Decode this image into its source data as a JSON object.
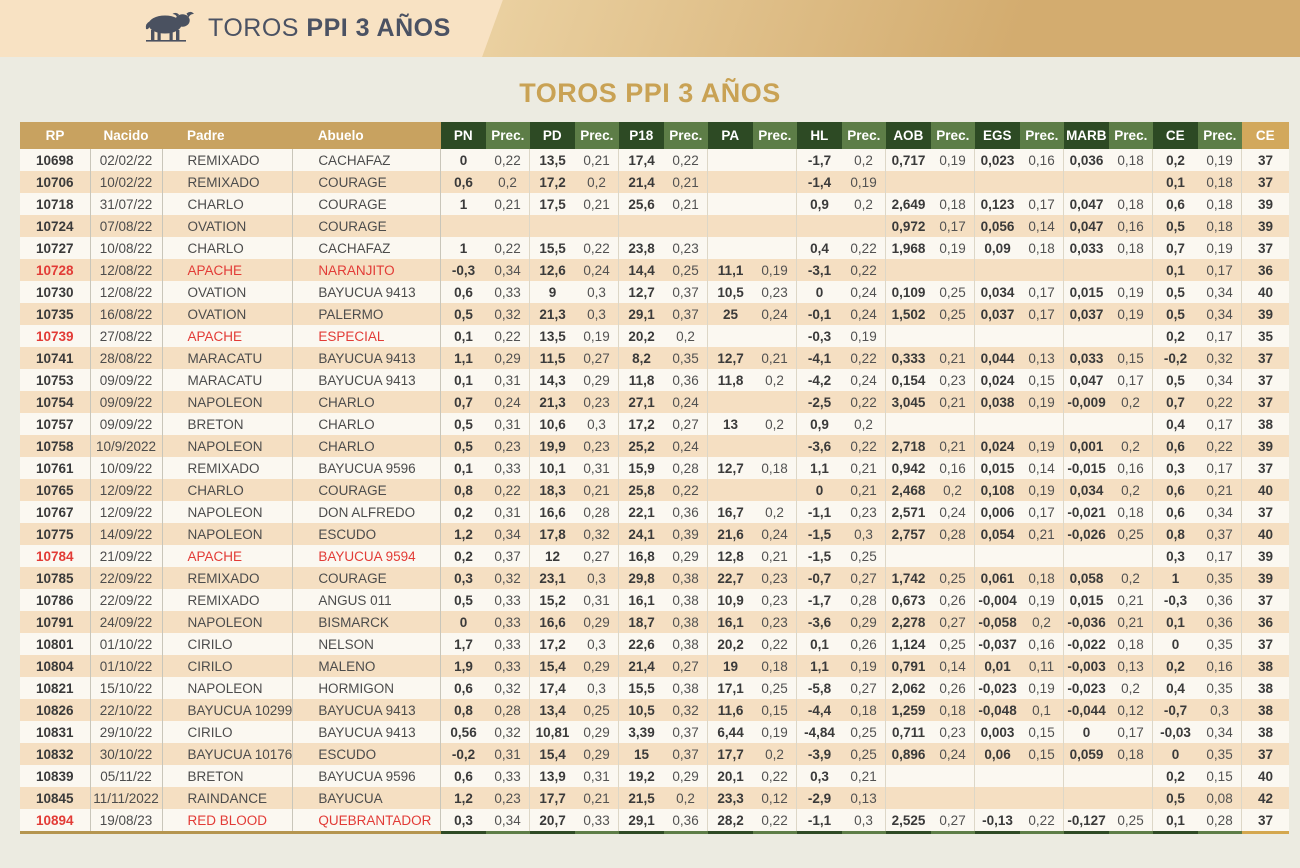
{
  "banner": {
    "brand_regular": "TOROS ",
    "brand_bold": "PPI 3 AÑOS"
  },
  "page_title": "TOROS PPI 3 AÑOS",
  "colors": {
    "banner_peach": "#f8e2c3",
    "banner_gold": "#d3ac6f",
    "page_background": "#ecebe1",
    "title_gold": "#c9a254",
    "header_tan": "#c8a260",
    "header_dark_green": "#2d4a24",
    "header_light_green": "#5d7d47",
    "header_final_tan": "#d2a85c",
    "row_cream": "#fbf8f1",
    "row_peach": "#f5dfc2",
    "highlight_red": "#e23b36"
  },
  "table": {
    "columns": [
      {
        "key": "rp",
        "label": "RP",
        "type": "id"
      },
      {
        "key": "nacido",
        "label": "Nacido",
        "type": "id"
      },
      {
        "key": "padre",
        "label": "Padre",
        "type": "id"
      },
      {
        "key": "abuelo",
        "label": "Abuelo",
        "type": "id"
      },
      {
        "key": "pn",
        "label": "PN",
        "type": "val"
      },
      {
        "key": "pn_prec",
        "label": "Prec.",
        "type": "prec"
      },
      {
        "key": "pd",
        "label": "PD",
        "type": "val"
      },
      {
        "key": "pd_prec",
        "label": "Prec.",
        "type": "prec"
      },
      {
        "key": "p18",
        "label": "P18",
        "type": "val"
      },
      {
        "key": "p18_prec",
        "label": "Prec.",
        "type": "prec"
      },
      {
        "key": "pa",
        "label": "PA",
        "type": "val"
      },
      {
        "key": "pa_prec",
        "label": "Prec.",
        "type": "prec"
      },
      {
        "key": "hl",
        "label": "HL",
        "type": "val"
      },
      {
        "key": "hl_prec",
        "label": "Prec.",
        "type": "prec"
      },
      {
        "key": "aob",
        "label": "AOB",
        "type": "val"
      },
      {
        "key": "aob_prec",
        "label": "Prec.",
        "type": "prec"
      },
      {
        "key": "egs",
        "label": "EGS",
        "type": "val"
      },
      {
        "key": "egs_prec",
        "label": "Prec.",
        "type": "prec"
      },
      {
        "key": "marb",
        "label": "MARB",
        "type": "val"
      },
      {
        "key": "marb_prec",
        "label": "Prec.",
        "type": "prec"
      },
      {
        "key": "ce",
        "label": "CE",
        "type": "val"
      },
      {
        "key": "ce_prec",
        "label": "Prec.",
        "type": "prec"
      },
      {
        "key": "ce_final",
        "label": "CE",
        "type": "final"
      }
    ],
    "rows": [
      {
        "rp": "10698",
        "nacido": "02/02/22",
        "padre": "REMIXADO",
        "abuelo": "CACHAFAZ",
        "red": false,
        "vals": [
          "0",
          "0,22",
          "13,5",
          "0,21",
          "17,4",
          "0,22",
          "",
          "",
          "-1,7",
          "0,2",
          "0,717",
          "0,19",
          "0,023",
          "0,16",
          "0,036",
          "0,18",
          "0,2",
          "0,19"
        ],
        "ce": "37"
      },
      {
        "rp": "10706",
        "nacido": "10/02/22",
        "padre": "REMIXADO",
        "abuelo": "COURAGE",
        "red": false,
        "vals": [
          "0,6",
          "0,2",
          "17,2",
          "0,2",
          "21,4",
          "0,21",
          "",
          "",
          "-1,4",
          "0,19",
          "",
          "",
          "",
          "",
          "",
          "",
          "0,1",
          "0,18"
        ],
        "ce": "37"
      },
      {
        "rp": "10718",
        "nacido": "31/07/22",
        "padre": "CHARLO",
        "abuelo": "COURAGE",
        "red": false,
        "vals": [
          "1",
          "0,21",
          "17,5",
          "0,21",
          "25,6",
          "0,21",
          "",
          "",
          "0,9",
          "0,2",
          "2,649",
          "0,18",
          "0,123",
          "0,17",
          "0,047",
          "0,18",
          "0,6",
          "0,18"
        ],
        "ce": "39"
      },
      {
        "rp": "10724",
        "nacido": "07/08/22",
        "padre": "OVATION",
        "abuelo": "COURAGE",
        "red": false,
        "vals": [
          "",
          "",
          "",
          "",
          "",
          "",
          "",
          "",
          "",
          "",
          "0,972",
          "0,17",
          "0,056",
          "0,14",
          "0,047",
          "0,16",
          "0,5",
          "0,18"
        ],
        "ce": "39"
      },
      {
        "rp": "10727",
        "nacido": "10/08/22",
        "padre": "CHARLO",
        "abuelo": "CACHAFAZ",
        "red": false,
        "vals": [
          "1",
          "0,22",
          "15,5",
          "0,22",
          "23,8",
          "0,23",
          "",
          "",
          "0,4",
          "0,22",
          "1,968",
          "0,19",
          "0,09",
          "0,18",
          "0,033",
          "0,18",
          "0,7",
          "0,19"
        ],
        "ce": "37"
      },
      {
        "rp": "10728",
        "nacido": "12/08/22",
        "padre": "APACHE",
        "abuelo": "NARANJITO",
        "red": true,
        "vals": [
          "-0,3",
          "0,34",
          "12,6",
          "0,24",
          "14,4",
          "0,25",
          "11,1",
          "0,19",
          "-3,1",
          "0,22",
          "",
          "",
          "",
          "",
          "",
          "",
          "0,1",
          "0,17"
        ],
        "ce": "36"
      },
      {
        "rp": "10730",
        "nacido": "12/08/22",
        "padre": "OVATION",
        "abuelo": "BAYUCUA 9413",
        "red": false,
        "vals": [
          "0,6",
          "0,33",
          "9",
          "0,3",
          "12,7",
          "0,37",
          "10,5",
          "0,23",
          "0",
          "0,24",
          "0,109",
          "0,25",
          "0,034",
          "0,17",
          "0,015",
          "0,19",
          "0,5",
          "0,34"
        ],
        "ce": "40"
      },
      {
        "rp": "10735",
        "nacido": "16/08/22",
        "padre": "OVATION",
        "abuelo": "PALERMO",
        "red": false,
        "vals": [
          "0,5",
          "0,32",
          "21,3",
          "0,3",
          "29,1",
          "0,37",
          "25",
          "0,24",
          "-0,1",
          "0,24",
          "1,502",
          "0,25",
          "0,037",
          "0,17",
          "0,037",
          "0,19",
          "0,5",
          "0,34"
        ],
        "ce": "39"
      },
      {
        "rp": "10739",
        "nacido": "27/08/22",
        "padre": "APACHE",
        "abuelo": "ESPECIAL",
        "red": true,
        "vals": [
          "0,1",
          "0,22",
          "13,5",
          "0,19",
          "20,2",
          "0,2",
          "",
          "",
          "-0,3",
          "0,19",
          "",
          "",
          "",
          "",
          "",
          "",
          "0,2",
          "0,17"
        ],
        "ce": "35"
      },
      {
        "rp": "10741",
        "nacido": "28/08/22",
        "padre": "MARACATU",
        "abuelo": "BAYUCUA 9413",
        "red": false,
        "vals": [
          "1,1",
          "0,29",
          "11,5",
          "0,27",
          "8,2",
          "0,35",
          "12,7",
          "0,21",
          "-4,1",
          "0,22",
          "0,333",
          "0,21",
          "0,044",
          "0,13",
          "0,033",
          "0,15",
          "-0,2",
          "0,32"
        ],
        "ce": "37"
      },
      {
        "rp": "10753",
        "nacido": "09/09/22",
        "padre": "MARACATU",
        "abuelo": "BAYUCUA 9413",
        "red": false,
        "vals": [
          "0,1",
          "0,31",
          "14,3",
          "0,29",
          "11,8",
          "0,36",
          "11,8",
          "0,2",
          "-4,2",
          "0,24",
          "0,154",
          "0,23",
          "0,024",
          "0,15",
          "0,047",
          "0,17",
          "0,5",
          "0,34"
        ],
        "ce": "37"
      },
      {
        "rp": "10754",
        "nacido": "09/09/22",
        "padre": "NAPOLEON",
        "abuelo": "CHARLO",
        "red": false,
        "vals": [
          "0,7",
          "0,24",
          "21,3",
          "0,23",
          "27,1",
          "0,24",
          "",
          "",
          "-2,5",
          "0,22",
          "3,045",
          "0,21",
          "0,038",
          "0,19",
          "-0,009",
          "0,2",
          "0,7",
          "0,22"
        ],
        "ce": "37"
      },
      {
        "rp": "10757",
        "nacido": "09/09/22",
        "padre": "BRETON",
        "abuelo": "CHARLO",
        "red": false,
        "vals": [
          "0,5",
          "0,31",
          "10,6",
          "0,3",
          "17,2",
          "0,27",
          "13",
          "0,2",
          "0,9",
          "0,2",
          "",
          "",
          "",
          "",
          "",
          "",
          "0,4",
          "0,17"
        ],
        "ce": "38"
      },
      {
        "rp": "10758",
        "nacido": "10/9/2022",
        "padre": "NAPOLEON",
        "abuelo": "CHARLO",
        "red": false,
        "vals": [
          "0,5",
          "0,23",
          "19,9",
          "0,23",
          "25,2",
          "0,24",
          "",
          "",
          "-3,6",
          "0,22",
          "2,718",
          "0,21",
          "0,024",
          "0,19",
          "0,001",
          "0,2",
          "0,6",
          "0,22"
        ],
        "ce": "39"
      },
      {
        "rp": "10761",
        "nacido": "10/09/22",
        "padre": "REMIXADO",
        "abuelo": "BAYUCUA 9596",
        "red": false,
        "vals": [
          "0,1",
          "0,33",
          "10,1",
          "0,31",
          "15,9",
          "0,28",
          "12,7",
          "0,18",
          "1,1",
          "0,21",
          "0,942",
          "0,16",
          "0,015",
          "0,14",
          "-0,015",
          "0,16",
          "0,3",
          "0,17"
        ],
        "ce": "37"
      },
      {
        "rp": "10765",
        "nacido": "12/09/22",
        "padre": "CHARLO",
        "abuelo": "COURAGE",
        "red": false,
        "vals": [
          "0,8",
          "0,22",
          "18,3",
          "0,21",
          "25,8",
          "0,22",
          "",
          "",
          "0",
          "0,21",
          "2,468",
          "0,2",
          "0,108",
          "0,19",
          "0,034",
          "0,2",
          "0,6",
          "0,21"
        ],
        "ce": "40"
      },
      {
        "rp": "10767",
        "nacido": "12/09/22",
        "padre": "NAPOLEON",
        "abuelo": "DON ALFREDO",
        "red": false,
        "vals": [
          "0,2",
          "0,31",
          "16,6",
          "0,28",
          "22,1",
          "0,36",
          "16,7",
          "0,2",
          "-1,1",
          "0,23",
          "2,571",
          "0,24",
          "0,006",
          "0,17",
          "-0,021",
          "0,18",
          "0,6",
          "0,34"
        ],
        "ce": "37"
      },
      {
        "rp": "10775",
        "nacido": "14/09/22",
        "padre": "NAPOLEON",
        "abuelo": "ESCUDO",
        "red": false,
        "vals": [
          "1,2",
          "0,34",
          "17,8",
          "0,32",
          "24,1",
          "0,39",
          "21,6",
          "0,24",
          "-1,5",
          "0,3",
          "2,757",
          "0,28",
          "0,054",
          "0,21",
          "-0,026",
          "0,25",
          "0,8",
          "0,37"
        ],
        "ce": "40"
      },
      {
        "rp": "10784",
        "nacido": "21/09/22",
        "padre": "APACHE",
        "abuelo": "BAYUCUA 9594",
        "red": true,
        "vals": [
          "0,2",
          "0,37",
          "12",
          "0,27",
          "16,8",
          "0,29",
          "12,8",
          "0,21",
          "-1,5",
          "0,25",
          "",
          "",
          "",
          "",
          "",
          "",
          "0,3",
          "0,17"
        ],
        "ce": "39"
      },
      {
        "rp": "10785",
        "nacido": "22/09/22",
        "padre": "REMIXADO",
        "abuelo": "COURAGE",
        "red": false,
        "vals": [
          "0,3",
          "0,32",
          "23,1",
          "0,3",
          "29,8",
          "0,38",
          "22,7",
          "0,23",
          "-0,7",
          "0,27",
          "1,742",
          "0,25",
          "0,061",
          "0,18",
          "0,058",
          "0,2",
          "1",
          "0,35"
        ],
        "ce": "39"
      },
      {
        "rp": "10786",
        "nacido": "22/09/22",
        "padre": "REMIXADO",
        "abuelo": "ANGUS 011",
        "red": false,
        "vals": [
          "0,5",
          "0,33",
          "15,2",
          "0,31",
          "16,1",
          "0,38",
          "10,9",
          "0,23",
          "-1,7",
          "0,28",
          "0,673",
          "0,26",
          "-0,004",
          "0,19",
          "0,015",
          "0,21",
          "-0,3",
          "0,36"
        ],
        "ce": "37"
      },
      {
        "rp": "10791",
        "nacido": "24/09/22",
        "padre": "NAPOLEON",
        "abuelo": "BISMARCK",
        "red": false,
        "vals": [
          "0",
          "0,33",
          "16,6",
          "0,29",
          "18,7",
          "0,38",
          "16,1",
          "0,23",
          "-3,6",
          "0,29",
          "2,278",
          "0,27",
          "-0,058",
          "0,2",
          "-0,036",
          "0,21",
          "0,1",
          "0,36"
        ],
        "ce": "36"
      },
      {
        "rp": "10801",
        "nacido": "01/10/22",
        "padre": "CIRILO",
        "abuelo": "NELSON",
        "red": false,
        "vals": [
          "1,7",
          "0,33",
          "17,2",
          "0,3",
          "22,6",
          "0,38",
          "20,2",
          "0,22",
          "0,1",
          "0,26",
          "1,124",
          "0,25",
          "-0,037",
          "0,16",
          "-0,022",
          "0,18",
          "0",
          "0,35"
        ],
        "ce": "37"
      },
      {
        "rp": "10804",
        "nacido": "01/10/22",
        "padre": "CIRILO",
        "abuelo": "MALENO",
        "red": false,
        "vals": [
          "1,9",
          "0,33",
          "15,4",
          "0,29",
          "21,4",
          "0,27",
          "19",
          "0,18",
          "1,1",
          "0,19",
          "0,791",
          "0,14",
          "0,01",
          "0,11",
          "-0,003",
          "0,13",
          "0,2",
          "0,16"
        ],
        "ce": "38"
      },
      {
        "rp": "10821",
        "nacido": "15/10/22",
        "padre": "NAPOLEON",
        "abuelo": "HORMIGON",
        "red": false,
        "vals": [
          "0,6",
          "0,32",
          "17,4",
          "0,3",
          "15,5",
          "0,38",
          "17,1",
          "0,25",
          "-5,8",
          "0,27",
          "2,062",
          "0,26",
          "-0,023",
          "0,19",
          "-0,023",
          "0,2",
          "0,4",
          "0,35"
        ],
        "ce": "38"
      },
      {
        "rp": "10826",
        "nacido": "22/10/22",
        "padre": "BAYUCUA 10299",
        "abuelo": "BAYUCUA 9413",
        "red": false,
        "vals": [
          "0,8",
          "0,28",
          "13,4",
          "0,25",
          "10,5",
          "0,32",
          "11,6",
          "0,15",
          "-4,4",
          "0,18",
          "1,259",
          "0,18",
          "-0,048",
          "0,1",
          "-0,044",
          "0,12",
          "-0,7",
          "0,3"
        ],
        "ce": "38"
      },
      {
        "rp": "10831",
        "nacido": "29/10/22",
        "padre": "CIRILO",
        "abuelo": "BAYUCUA 9413",
        "red": false,
        "vals": [
          "0,56",
          "0,32",
          "10,81",
          "0,29",
          "3,39",
          "0,37",
          "6,44",
          "0,19",
          "-4,84",
          "0,25",
          "0,711",
          "0,23",
          "0,003",
          "0,15",
          "0",
          "0,17",
          "-0,03",
          "0,34"
        ],
        "ce": "38"
      },
      {
        "rp": "10832",
        "nacido": "30/10/22",
        "padre": "BAYUCUA 10176",
        "abuelo": "ESCUDO",
        "red": false,
        "vals": [
          "-0,2",
          "0,31",
          "15,4",
          "0,29",
          "15",
          "0,37",
          "17,7",
          "0,2",
          "-3,9",
          "0,25",
          "0,896",
          "0,24",
          "0,06",
          "0,15",
          "0,059",
          "0,18",
          "0",
          "0,35"
        ],
        "ce": "37"
      },
      {
        "rp": "10839",
        "nacido": "05/11/22",
        "padre": "BRETON",
        "abuelo": "BAYUCUA 9596",
        "red": false,
        "vals": [
          "0,6",
          "0,33",
          "13,9",
          "0,31",
          "19,2",
          "0,29",
          "20,1",
          "0,22",
          "0,3",
          "0,21",
          "",
          "",
          "",
          "",
          "",
          "",
          "0,2",
          "0,15"
        ],
        "ce": "40"
      },
      {
        "rp": "10845",
        "nacido": "11/11/2022",
        "padre": "RAINDANCE",
        "abuelo": "BAYUCUA",
        "red": false,
        "vals": [
          "1,2",
          "0,23",
          "17,7",
          "0,21",
          "21,5",
          "0,2",
          "23,3",
          "0,12",
          "-2,9",
          "0,13",
          "",
          "",
          "",
          "",
          "",
          "",
          "0,5",
          "0,08"
        ],
        "ce": "42"
      },
      {
        "rp": "10894",
        "nacido": "19/08/23",
        "padre": "RED BLOOD",
        "abuelo": "QUEBRANTADOR",
        "red": true,
        "vals": [
          "0,3",
          "0,34",
          "20,7",
          "0,33",
          "29,1",
          "0,36",
          "28,2",
          "0,22",
          "-1,1",
          "0,3",
          "2,525",
          "0,27",
          "-0,13",
          "0,22",
          "-0,127",
          "0,25",
          "0,1",
          "0,28"
        ],
        "ce": "37"
      }
    ]
  }
}
